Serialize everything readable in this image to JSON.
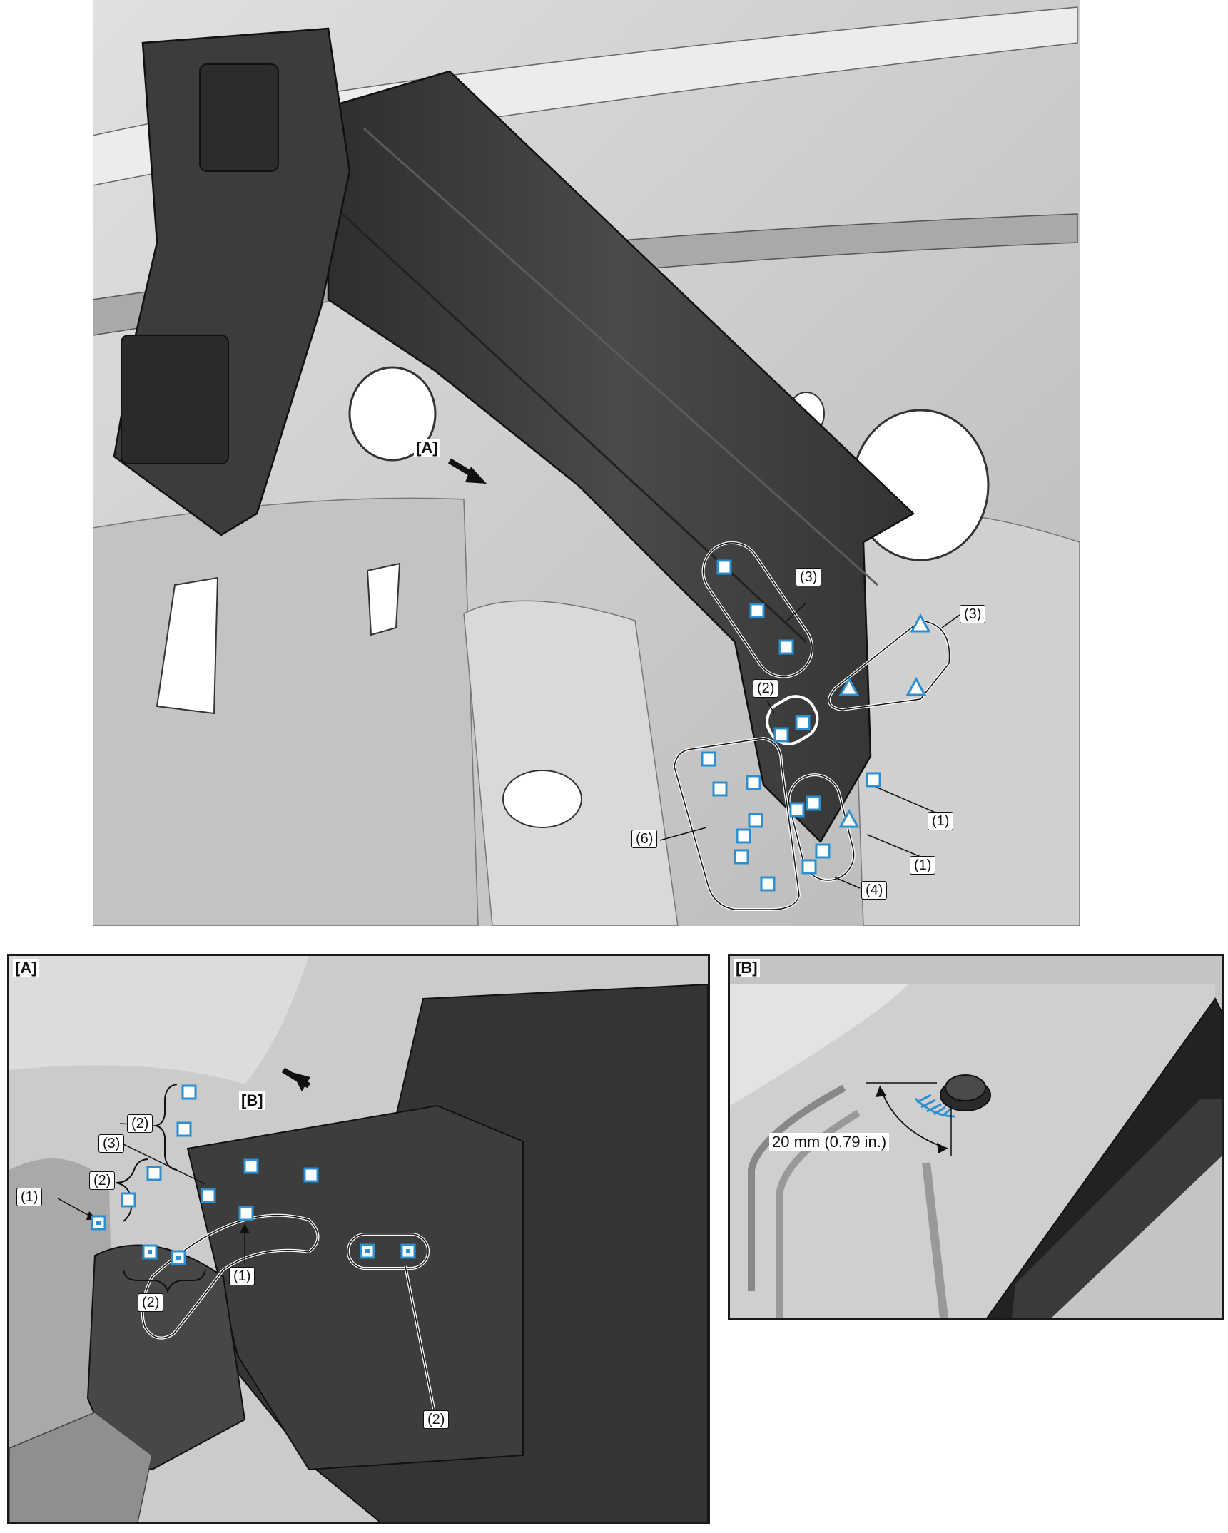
{
  "main": {
    "refs": {
      "view_a": "[A]"
    },
    "callouts": {
      "c3_left": "(3)",
      "c3_right": "(3)",
      "c2": "(2)",
      "c1_upper": "(1)",
      "c1_lower": "(1)",
      "c6": "(6)",
      "c4": "(4)"
    }
  },
  "detail_a": {
    "label": "[A]",
    "refs": {
      "view_b": "[B]"
    },
    "callouts": {
      "c2_top": "(2)",
      "c3": "(3)",
      "c2_mid": "(2)",
      "c1_left": "(1)",
      "c2_bottom": "(2)",
      "c1_bottom": "(1)",
      "c2_right": "(2)"
    }
  },
  "detail_b": {
    "label": "[B]",
    "dimension": "20 mm (0.79 in.)"
  },
  "colors": {
    "weld_mark": "#2b8fd0",
    "dark_part": "#3a3a3a",
    "light_panel": "#d4d4d4",
    "outline": "#111111"
  }
}
